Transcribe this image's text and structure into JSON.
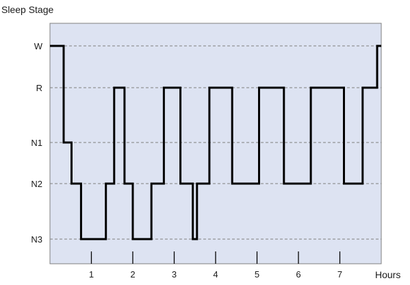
{
  "chart_data": {
    "type": "line",
    "ylabel": "Sleep Stage",
    "xlabel": "Hours",
    "y_categories": [
      "N3",
      "N2",
      "N1",
      "R",
      "W"
    ],
    "x_ticks": [
      1,
      2,
      3,
      4,
      5,
      6,
      7
    ],
    "xlim": [
      0,
      8
    ],
    "grid": "dashed horizontal lines at each stage",
    "series": [
      {
        "step_points": [
          {
            "x": 0.0,
            "y": "W"
          },
          {
            "x": 0.33,
            "y": "N1"
          },
          {
            "x": 0.52,
            "y": "N2"
          },
          {
            "x": 0.75,
            "y": "N3"
          },
          {
            "x": 1.35,
            "y": "N2"
          },
          {
            "x": 1.55,
            "y": "R"
          },
          {
            "x": 1.8,
            "y": "N2"
          },
          {
            "x": 2.0,
            "y": "N3"
          },
          {
            "x": 2.45,
            "y": "N2"
          },
          {
            "x": 2.75,
            "y": "R"
          },
          {
            "x": 3.15,
            "y": "N2"
          },
          {
            "x": 3.45,
            "y": "N3"
          },
          {
            "x": 3.55,
            "y": "N2"
          },
          {
            "x": 3.85,
            "y": "R"
          },
          {
            "x": 4.4,
            "y": "N2"
          },
          {
            "x": 5.05,
            "y": "R"
          },
          {
            "x": 5.65,
            "y": "N2"
          },
          {
            "x": 6.3,
            "y": "R"
          },
          {
            "x": 7.1,
            "y": "N2"
          },
          {
            "x": 7.55,
            "y": "R"
          },
          {
            "x": 7.9,
            "y": "W"
          },
          {
            "x": 8.0,
            "y": "W"
          }
        ]
      }
    ],
    "colors": {
      "plot_background": "#dde3f2",
      "line": "#000000",
      "grid": "#7f7f7f"
    }
  }
}
